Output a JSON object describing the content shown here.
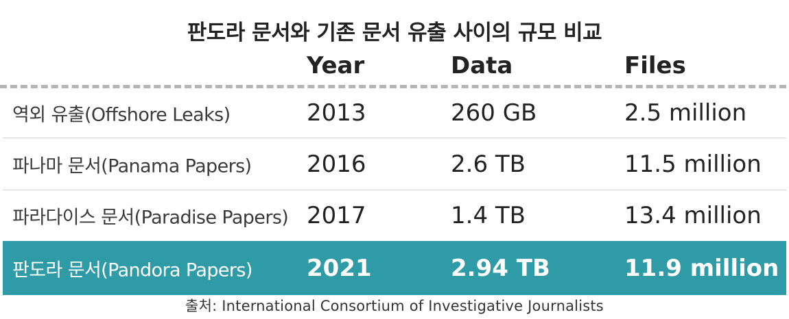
{
  "title": "판도라 문서와 기존 문서 유출 사이의 규모 비교",
  "columns": {
    "year": "Year",
    "data": "Data",
    "files": "Files"
  },
  "rows": [
    {
      "label": "역외 유출(Offshore Leaks)",
      "year": "2013",
      "data": "260 GB",
      "files": "2.5 million",
      "highlighted": false
    },
    {
      "label": "파나마 문서(Panama Papers)",
      "year": "2016",
      "data": "2.6 TB",
      "files": "11.5 million",
      "highlighted": false
    },
    {
      "label": "파라다이스 문서(Paradise Papers)",
      "year": "2017",
      "data": "1.4 TB",
      "files": "13.4 million",
      "highlighted": false
    },
    {
      "label": "판도라 문서(Pandora Papers)",
      "year": "2021",
      "data": "2.94 TB",
      "files": "11.9 million",
      "highlighted": true
    }
  ],
  "source": "출처: International Consortium of Investigative Journalists",
  "colors": {
    "highlight": "#2e9ba6",
    "text": "#222222",
    "rule": "#b5b5b5",
    "divider": "#d2d2d2"
  }
}
